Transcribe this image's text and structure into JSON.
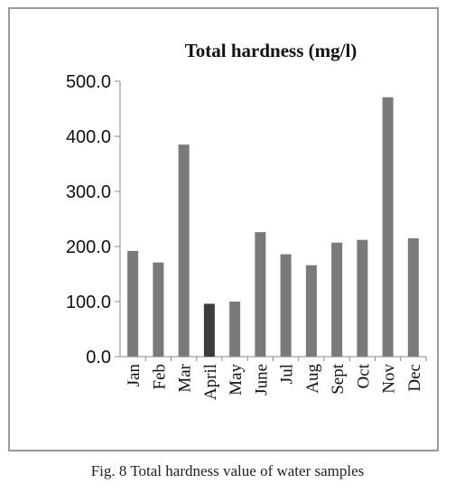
{
  "chart_data": {
    "type": "bar",
    "title": "Total hardness (mg/l)",
    "categories": [
      "Jan",
      "Feb",
      "Mar",
      "April",
      "May",
      "June",
      "Jul",
      "Aug",
      "Sept",
      "Oct",
      "Nov",
      "Dec"
    ],
    "values": [
      192,
      171,
      385,
      96,
      100,
      226,
      186,
      166,
      207,
      212,
      471,
      215
    ],
    "ylim": [
      0,
      500
    ],
    "yticks": [
      "0.0",
      "100.0",
      "200.0",
      "300.0",
      "400.0",
      "500.0"
    ],
    "xlabel": "",
    "ylabel": "",
    "grid": false,
    "legend": "none",
    "bar_color": "#7a7a7a",
    "highlight_color": "#3c3c3c",
    "highlight_category": "April"
  },
  "caption": "Fig. 8 Total hardness value of water samples"
}
